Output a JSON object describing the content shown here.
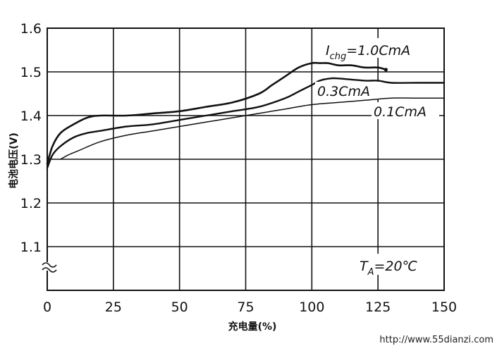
{
  "chart_data": {
    "type": "line",
    "xlabel": "充电量(%)",
    "ylabel": "电池电压(V)",
    "xlim": [
      0,
      150
    ],
    "ylim": [
      1.0,
      1.6
    ],
    "x_ticks": [
      "0",
      "25",
      "50",
      "75",
      "100",
      "125",
      "150"
    ],
    "y_ticks": [
      "1.1",
      "1.2",
      "1.3",
      "1.4",
      "1.5",
      "1.6"
    ],
    "grid": true,
    "series": [
      {
        "name": "I_chg=1.0CmA",
        "x": [
          0,
          2,
          5,
          10,
          15,
          20,
          30,
          40,
          50,
          60,
          70,
          80,
          85,
          90,
          95,
          100,
          103,
          106,
          110,
          115,
          120,
          125,
          128
        ],
        "y": [
          1.29,
          1.33,
          1.36,
          1.38,
          1.395,
          1.4,
          1.4,
          1.405,
          1.41,
          1.42,
          1.43,
          1.45,
          1.47,
          1.49,
          1.51,
          1.52,
          1.52,
          1.52,
          1.515,
          1.515,
          1.51,
          1.51,
          1.505
        ]
      },
      {
        "name": "0.3CmA",
        "x": [
          0,
          2,
          5,
          10,
          15,
          20,
          30,
          40,
          50,
          60,
          70,
          80,
          90,
          95,
          100,
          103,
          107,
          110,
          120,
          125,
          130,
          140,
          150
        ],
        "y": [
          1.28,
          1.31,
          1.33,
          1.35,
          1.36,
          1.365,
          1.375,
          1.38,
          1.39,
          1.4,
          1.41,
          1.42,
          1.44,
          1.455,
          1.47,
          1.48,
          1.485,
          1.485,
          1.48,
          1.48,
          1.475,
          1.475,
          1.475
        ]
      },
      {
        "name": "0.1CmA",
        "x": [
          5,
          8,
          12,
          20,
          30,
          40,
          50,
          60,
          70,
          80,
          90,
          100,
          110,
          120,
          130,
          140,
          150
        ],
        "y": [
          1.3,
          1.31,
          1.32,
          1.34,
          1.355,
          1.365,
          1.375,
          1.385,
          1.395,
          1.405,
          1.415,
          1.425,
          1.43,
          1.435,
          1.44,
          1.44,
          1.44
        ]
      }
    ],
    "annotations": {
      "label_1_0_prefix": "I",
      "label_1_0_sub": "chg",
      "label_1_0_suffix": "=1.0CmA",
      "label_0_3": "0.3CmA",
      "label_0_1": "0.1CmA",
      "temp_prefix": "T",
      "temp_sub": "A",
      "temp_suffix": "=20℃"
    }
  },
  "watermark": "http://www.55dianzi.com"
}
